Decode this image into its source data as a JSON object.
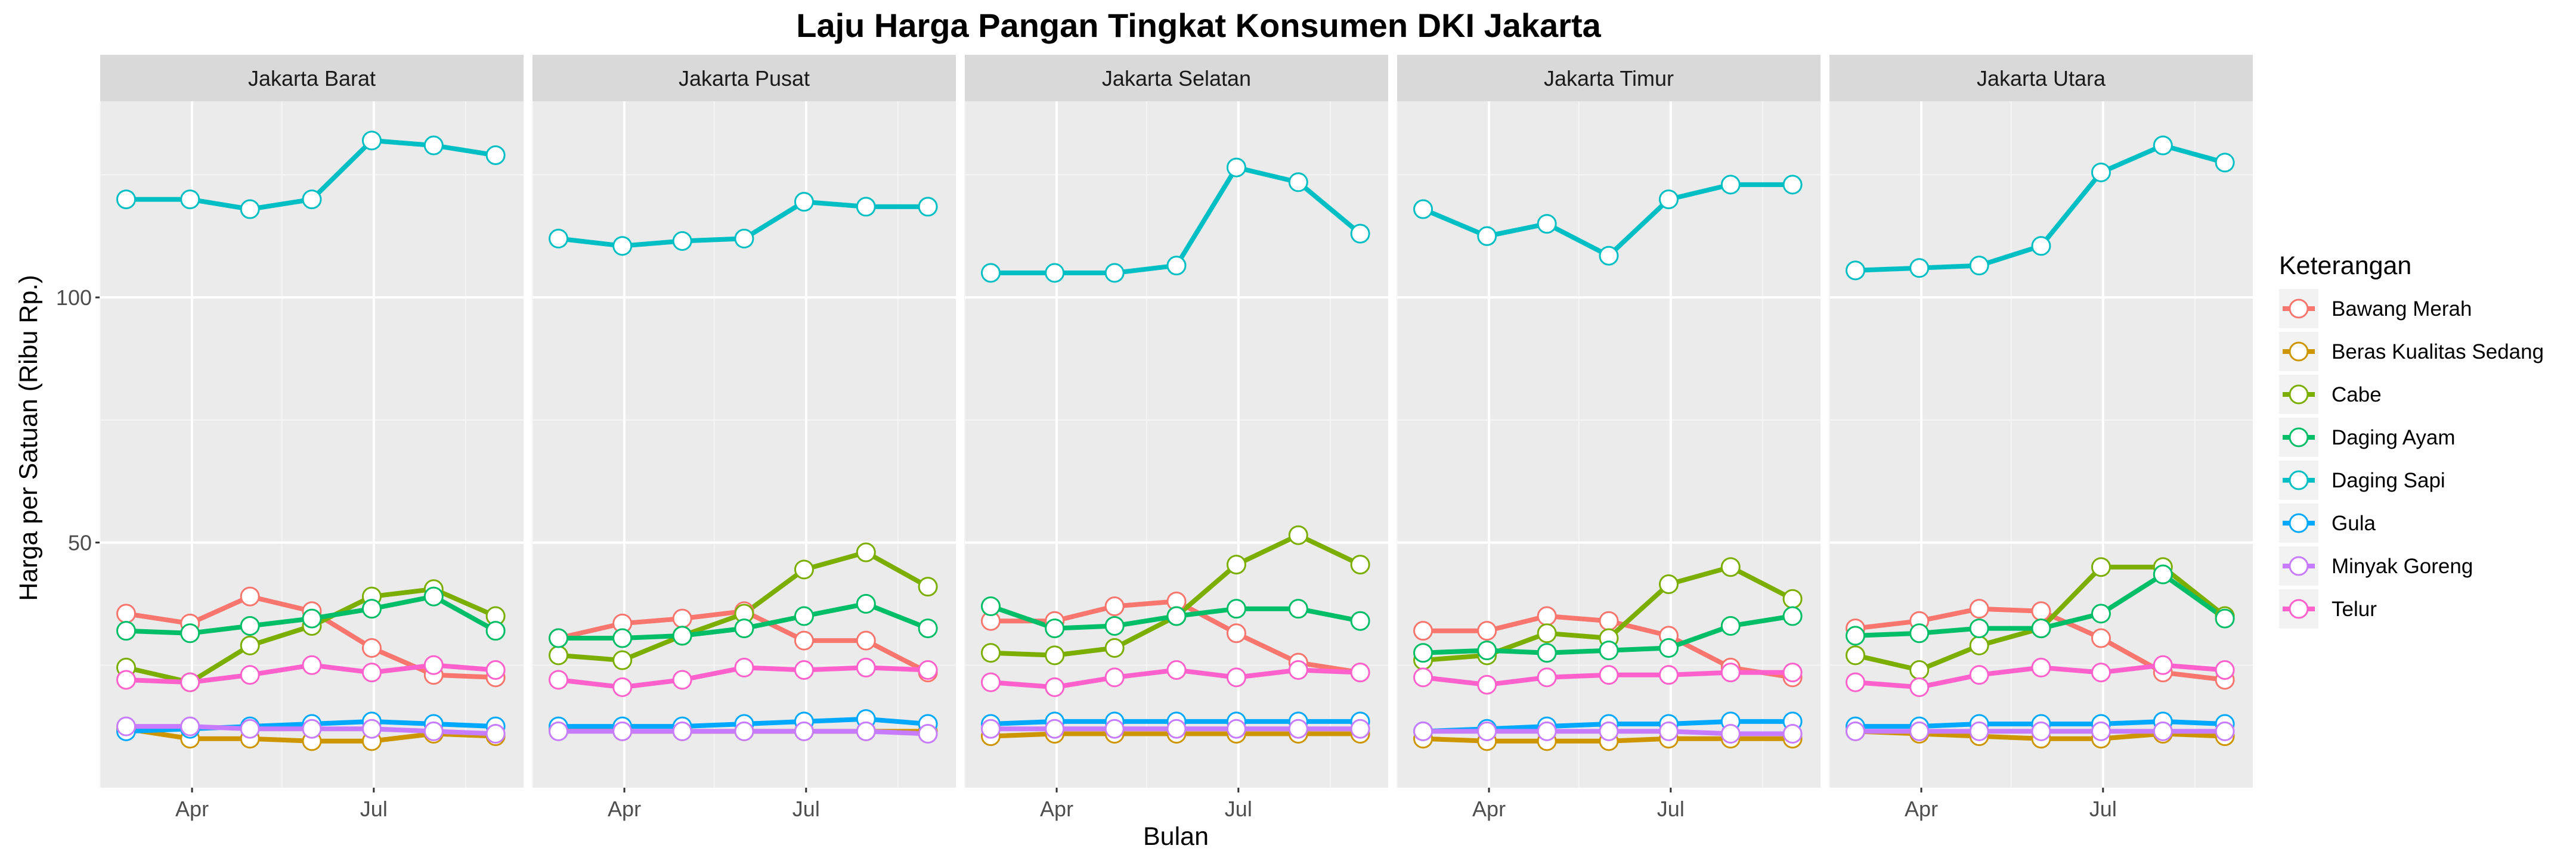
{
  "chart_data": {
    "type": "line",
    "title": "Laju Harga Pangan Tingkat Konsumen DKI Jakarta",
    "xlabel": "Bulan",
    "ylabel": "Harga per Satuan (Ribu Rp.)",
    "x": [
      "2016-02-28",
      "2016-03-31",
      "2016-04-30",
      "2016-05-31",
      "2016-06-30",
      "2016-07-31",
      "2016-08-31"
    ],
    "x_ticks": [
      {
        "date": "2016-04-01",
        "label": "Apr"
      },
      {
        "date": "2016-07-01",
        "label": "Jul"
      }
    ],
    "ylim": [
      0,
      140
    ],
    "y_ticks": [
      50,
      100
    ],
    "grid": true,
    "legend": {
      "title": "Keterangan",
      "placement": "right",
      "entries": [
        "Bawang Merah",
        "Beras Kualitas Sedang",
        "Cabe",
        "Daging Ayam",
        "Daging Sapi",
        "Gula",
        "Minyak Goreng",
        "Telur"
      ]
    },
    "colors": {
      "Bawang Merah": "#F8766D",
      "Beras Kualitas Sedang": "#CD9600",
      "Cabe": "#7CAE00",
      "Daging Ayam": "#00BE67",
      "Daging Sapi": "#00BFC4",
      "Gula": "#00A9FF",
      "Minyak Goreng": "#C77CFF",
      "Telur": "#FF61CC"
    },
    "panels": [
      {
        "name": "Jakarta Barat",
        "series": [
          {
            "name": "Bawang Merah",
            "values": [
              35.5,
              33.5,
              39,
              36,
              28.5,
              23,
              22.5
            ]
          },
          {
            "name": "Beras Kualitas Sedang",
            "values": [
              12,
              10,
              10,
              9.5,
              9.5,
              11,
              10.5
            ]
          },
          {
            "name": "Cabe",
            "values": [
              24.5,
              21.5,
              29,
              33,
              39,
              40.5,
              35
            ]
          },
          {
            "name": "Daging Ayam",
            "values": [
              32,
              31.5,
              33,
              34.5,
              36.5,
              39,
              32
            ]
          },
          {
            "name": "Daging Sapi",
            "values": [
              120,
              120,
              118,
              120,
              132,
              131,
              129
            ]
          },
          {
            "name": "Gula",
            "values": [
              11.5,
              12,
              12.5,
              13,
              13.5,
              13,
              12.5
            ]
          },
          {
            "name": "Minyak Goreng",
            "values": [
              12.5,
              12.5,
              12,
              12,
              12,
              11.5,
              11
            ]
          },
          {
            "name": "Telur",
            "values": [
              22,
              21.5,
              23,
              25,
              23.5,
              25,
              24
            ]
          }
        ]
      },
      {
        "name": "Jakarta Pusat",
        "series": [
          {
            "name": "Bawang Merah",
            "values": [
              30.5,
              33.5,
              34.5,
              36,
              30,
              30,
              23.5
            ]
          },
          {
            "name": "Beras Kualitas Sedang",
            "values": [
              12,
              11.5,
              11.5,
              11.5,
              11.5,
              11.5,
              11.5
            ]
          },
          {
            "name": "Cabe",
            "values": [
              27,
              26,
              31,
              35.5,
              44.5,
              48,
              41
            ]
          },
          {
            "name": "Daging Ayam",
            "values": [
              30.5,
              30.5,
              31,
              32.5,
              35,
              37.5,
              32.5
            ]
          },
          {
            "name": "Daging Sapi",
            "values": [
              112,
              110.5,
              111.5,
              112,
              119.5,
              118.5,
              118.5
            ]
          },
          {
            "name": "Gula",
            "values": [
              12.5,
              12.5,
              12.5,
              13,
              13.5,
              14,
              13
            ]
          },
          {
            "name": "Minyak Goreng",
            "values": [
              11.5,
              11.5,
              11.5,
              11.5,
              11.5,
              11.5,
              11
            ]
          },
          {
            "name": "Telur",
            "values": [
              22,
              20.5,
              22,
              24.5,
              24,
              24.5,
              24
            ]
          }
        ]
      },
      {
        "name": "Jakarta Selatan",
        "series": [
          {
            "name": "Bawang Merah",
            "values": [
              34,
              34,
              37,
              38,
              31.5,
              25.5,
              23.5
            ]
          },
          {
            "name": "Beras Kualitas Sedang",
            "values": [
              10.5,
              11,
              11,
              11,
              11,
              11,
              11
            ]
          },
          {
            "name": "Cabe",
            "values": [
              27.5,
              27,
              28.5,
              35,
              45.5,
              51.5,
              45.5
            ]
          },
          {
            "name": "Daging Ayam",
            "values": [
              37,
              32.5,
              33,
              35,
              36.5,
              36.5,
              34
            ]
          },
          {
            "name": "Daging Sapi",
            "values": [
              105,
              105,
              105,
              106.5,
              126.5,
              123.5,
              113
            ]
          },
          {
            "name": "Gula",
            "values": [
              13,
              13.5,
              13.5,
              13.5,
              13.5,
              13.5,
              13.5
            ]
          },
          {
            "name": "Minyak Goreng",
            "values": [
              12,
              12,
              12,
              12,
              12,
              12,
              12
            ]
          },
          {
            "name": "Telur",
            "values": [
              21.5,
              20.5,
              22.5,
              24,
              22.5,
              24,
              23.5
            ]
          }
        ]
      },
      {
        "name": "Jakarta Timur",
        "series": [
          {
            "name": "Bawang Merah",
            "values": [
              32,
              32,
              35,
              34,
              31,
              24.5,
              22.5
            ]
          },
          {
            "name": "Beras Kualitas Sedang",
            "values": [
              10,
              9.5,
              9.5,
              9.5,
              10,
              10,
              10
            ]
          },
          {
            "name": "Cabe",
            "values": [
              26,
              27,
              31.5,
              30.5,
              41.5,
              45,
              38.5
            ]
          },
          {
            "name": "Daging Ayam",
            "values": [
              27.5,
              28,
              27.5,
              28,
              28.5,
              33,
              35
            ]
          },
          {
            "name": "Daging Sapi",
            "values": [
              118,
              112.5,
              115,
              108.5,
              120,
              123,
              123
            ]
          },
          {
            "name": "Gula",
            "values": [
              11.5,
              12,
              12.5,
              13,
              13,
              13.5,
              13.5
            ]
          },
          {
            "name": "Minyak Goreng",
            "values": [
              11.5,
              11.5,
              11.5,
              11.5,
              11.5,
              11,
              11
            ]
          },
          {
            "name": "Telur",
            "values": [
              22.5,
              21,
              22.5,
              23,
              23,
              23.5,
              23.5
            ]
          }
        ]
      },
      {
        "name": "Jakarta Utara",
        "series": [
          {
            "name": "Bawang Merah",
            "values": [
              32.5,
              34,
              36.5,
              36,
              30.5,
              23.5,
              22
            ]
          },
          {
            "name": "Beras Kualitas Sedang",
            "values": [
              11.5,
              11,
              10.5,
              10,
              10,
              11,
              10.5
            ]
          },
          {
            "name": "Cabe",
            "values": [
              27,
              24,
              29,
              32.5,
              45,
              45,
              35
            ]
          },
          {
            "name": "Daging Ayam",
            "values": [
              31,
              31.5,
              32.5,
              32.5,
              35.5,
              43.5,
              34.5
            ]
          },
          {
            "name": "Daging Sapi",
            "values": [
              105.5,
              106,
              106.5,
              110.5,
              125.5,
              131,
              127.5
            ]
          },
          {
            "name": "Gula",
            "values": [
              12.5,
              12.5,
              13,
              13,
              13,
              13.5,
              13
            ]
          },
          {
            "name": "Minyak Goreng",
            "values": [
              11.5,
              11.5,
              11.5,
              11.5,
              11.5,
              11.5,
              11.5
            ]
          },
          {
            "name": "Telur",
            "values": [
              21.5,
              20.5,
              23,
              24.5,
              23.5,
              25,
              24
            ]
          }
        ]
      }
    ]
  }
}
